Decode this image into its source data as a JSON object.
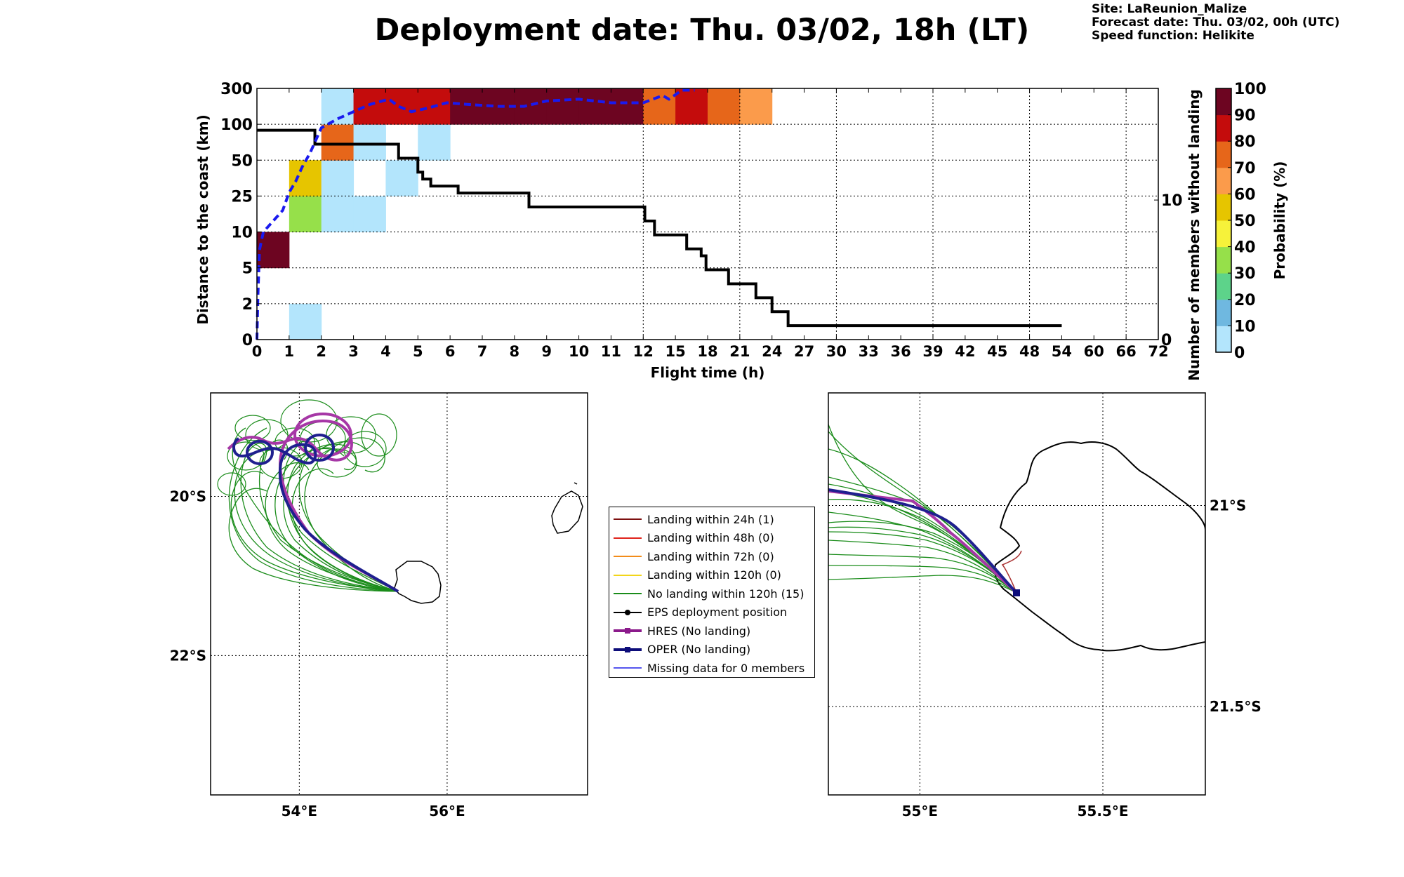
{
  "header": {
    "title": "Deployment date: Thu. 03/02, 18h (LT)",
    "site": "Site: LaReunion_Malize",
    "forecast": "Forecast date: Thu. 03/02, 00h (UTC)",
    "speed": "Speed function: Helikite"
  },
  "chart_data": [
    {
      "type": "heatmap",
      "xlabel": "Flight time (h)",
      "ylabel": "Distance to the coast (km)",
      "y2label": "Number of members without landing",
      "x_ticks": [
        "0",
        "1",
        "2",
        "3",
        "4",
        "5",
        "6",
        "7",
        "8",
        "9",
        "10",
        "11",
        "12",
        "15",
        "18",
        "21",
        "24",
        "27",
        "30",
        "33",
        "36",
        "39",
        "42",
        "45",
        "48",
        "54",
        "60",
        "66",
        "72"
      ],
      "y_ticks": [
        "0",
        "2",
        "5",
        "10",
        "25",
        "50",
        "100",
        "300"
      ],
      "y2_ticks": [
        "0",
        "10"
      ],
      "y2_range": [
        0,
        18
      ],
      "colorbar": {
        "label": "Probability (%)",
        "ticks": [
          "0",
          "10",
          "20",
          "30",
          "40",
          "50",
          "60",
          "70",
          "80",
          "90",
          "100"
        ],
        "colors": [
          "#b3e5fc",
          "#6fb8e0",
          "#5dd38a",
          "#96e04a",
          "#f6f23a",
          "#e6c500",
          "#fb9b4b",
          "#e6661a",
          "#c40c0c",
          "#6d0521"
        ]
      },
      "cells": [
        {
          "x": 0,
          "y": 2,
          "color": "#6d0521"
        },
        {
          "x": 1,
          "y": 0,
          "color": "#b3e5fc"
        },
        {
          "x": 1,
          "y": 3,
          "color": "#96e04a"
        },
        {
          "x": 1,
          "y": 4,
          "color": "#e6c500"
        },
        {
          "x": 2,
          "y": 3,
          "color": "#b3e5fc"
        },
        {
          "x": 2,
          "y": 4,
          "color": "#b3e5fc"
        },
        {
          "x": 2,
          "y": 5,
          "color": "#e6661a"
        },
        {
          "x": 2,
          "y": 6,
          "color": "#b3e5fc"
        },
        {
          "x": 3,
          "y": 3,
          "color": "#b3e5fc"
        },
        {
          "x": 3,
          "y": 5,
          "color": "#b3e5fc"
        },
        {
          "x": 3,
          "y": 6,
          "color": "#c40c0c"
        },
        {
          "x": 4,
          "y": 4,
          "color": "#b3e5fc"
        },
        {
          "x": 4,
          "y": 6,
          "color": "#c40c0c"
        },
        {
          "x": 5,
          "y": 5,
          "color": "#b3e5fc"
        },
        {
          "x": 5,
          "y": 6,
          "color": "#c40c0c"
        },
        {
          "x": 6,
          "y": 6,
          "color": "#6d0521"
        },
        {
          "x": 7,
          "y": 6,
          "color": "#6d0521"
        },
        {
          "x": 8,
          "y": 6,
          "color": "#6d0521"
        },
        {
          "x": 9,
          "y": 6,
          "color": "#6d0521"
        },
        {
          "x": 10,
          "y": 6,
          "color": "#6d0521"
        },
        {
          "x": 11,
          "y": 6,
          "color": "#6d0521"
        },
        {
          "x": 12,
          "y": 6,
          "color": "#e6661a"
        },
        {
          "x": 13,
          "y": 6,
          "color": "#c40c0c"
        },
        {
          "x": 14,
          "y": 6,
          "color": "#e6661a"
        },
        {
          "x": 15,
          "y": 6,
          "color": "#fb9b4b"
        }
      ],
      "members_without_landing": [
        [
          0,
          15
        ],
        [
          1.8,
          15
        ],
        [
          1.8,
          14
        ],
        [
          4.4,
          14
        ],
        [
          4.4,
          13
        ],
        [
          5,
          13
        ],
        [
          5,
          12
        ],
        [
          5.15,
          12
        ],
        [
          5.15,
          11.5
        ],
        [
          5.4,
          11.5
        ],
        [
          5.4,
          11
        ],
        [
          6.25,
          11
        ],
        [
          6.25,
          10.5
        ],
        [
          8.45,
          10.5
        ],
        [
          8.45,
          9.5
        ],
        [
          12.05,
          9.5
        ],
        [
          12.05,
          8.5
        ],
        [
          12.35,
          8.5
        ],
        [
          12.35,
          7.5
        ],
        [
          13.35,
          7.5
        ],
        [
          13.35,
          6.5
        ],
        [
          13.8,
          6.5
        ],
        [
          13.8,
          6
        ],
        [
          13.95,
          6
        ],
        [
          13.95,
          5
        ],
        [
          14.65,
          5
        ],
        [
          14.65,
          4
        ],
        [
          15.5,
          4
        ],
        [
          15.5,
          3
        ],
        [
          16,
          3
        ],
        [
          16,
          2
        ],
        [
          16.5,
          2
        ],
        [
          16.5,
          1
        ],
        [
          25,
          1
        ]
      ],
      "mean_distance_curve": [
        [
          0,
          0
        ],
        [
          0.03,
          1.2
        ],
        [
          0.08,
          2.5
        ],
        [
          0.2,
          3
        ],
        [
          0.5,
          3.3
        ],
        [
          0.8,
          3.6
        ],
        [
          1,
          4.1
        ],
        [
          1.2,
          4.4
        ],
        [
          1.4,
          4.8
        ],
        [
          1.65,
          5.2
        ],
        [
          2,
          5.9
        ],
        [
          2.5,
          6.15
        ],
        [
          3,
          6.35
        ],
        [
          3.5,
          6.55
        ],
        [
          4.1,
          6.7
        ],
        [
          4.4,
          6.5
        ],
        [
          4.8,
          6.35
        ],
        [
          5.3,
          6.45
        ],
        [
          5.9,
          6.6
        ],
        [
          6.6,
          6.55
        ],
        [
          7.5,
          6.5
        ],
        [
          8.3,
          6.5
        ],
        [
          9,
          6.65
        ],
        [
          10,
          6.7
        ],
        [
          11,
          6.6
        ],
        [
          12,
          6.6
        ],
        [
          12.6,
          6.8
        ],
        [
          12.8,
          6.7
        ],
        [
          13.2,
          6.95
        ],
        [
          13.6,
          6.95
        ]
      ]
    },
    {
      "type": "scatter",
      "name": "trajectory-map-regional",
      "x_ticks": [
        "54°E",
        "56°E"
      ],
      "y_ticks": [
        "20°S",
        "22°S"
      ],
      "xlim": [
        52.8,
        57.9
      ],
      "ylim": [
        -23.75,
        -18.7
      ]
    },
    {
      "type": "scatter",
      "name": "trajectory-map-zoom",
      "x_ticks": [
        "55°E",
        "55.5°E"
      ],
      "y_ticks": [
        "21°S",
        "21.5°S"
      ],
      "xlim": [
        54.75,
        55.78
      ],
      "ylim": [
        -21.72,
        -20.72
      ]
    }
  ],
  "legend": {
    "items": [
      {
        "label": "Landing within 24h (1)",
        "color": "#7d1010",
        "marker": "none"
      },
      {
        "label": "Landing within 48h (0)",
        "color": "#e0231c",
        "marker": "none"
      },
      {
        "label": "Landing within 72h (0)",
        "color": "#f28c1a",
        "marker": "none"
      },
      {
        "label": "Landing within 120h (0)",
        "color": "#f2d51a",
        "marker": "none"
      },
      {
        "label": "No landing within 120h (15)",
        "color": "#1a8c1a",
        "marker": "none"
      },
      {
        "label": "EPS deployment position",
        "color": "#000000",
        "marker": "dot"
      },
      {
        "label": "HRES (No landing)",
        "color": "#8b1a8b",
        "marker": "square"
      },
      {
        "label": "OPER (No landing)",
        "color": "#0d0d7a",
        "marker": "square"
      },
      {
        "label": "Missing data for 0 members",
        "color": "#5555ee",
        "marker": "none"
      }
    ]
  }
}
